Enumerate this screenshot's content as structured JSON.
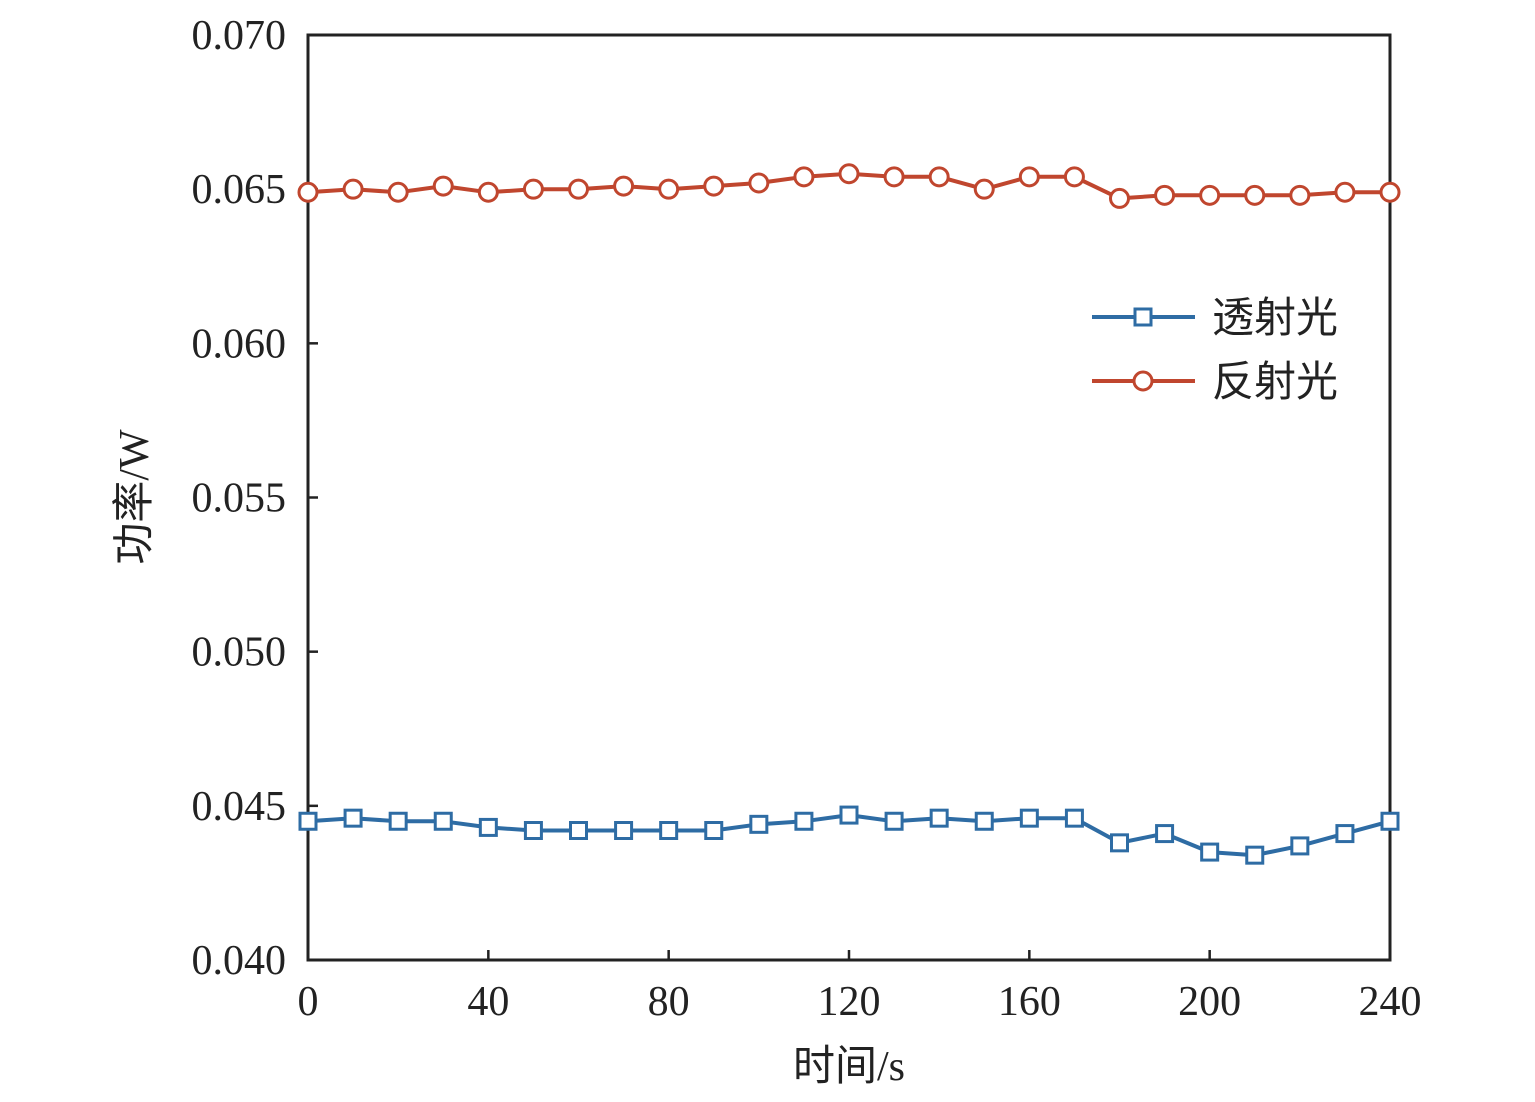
{
  "chart_data": {
    "type": "line",
    "title": "",
    "xlabel": "时间/s",
    "ylabel": "功率/W",
    "xlim": [
      0,
      240
    ],
    "ylim": [
      0.04,
      0.07
    ],
    "xticks": [
      "0",
      "40",
      "80",
      "120",
      "160",
      "200",
      "240"
    ],
    "yticks": [
      "0.040",
      "0.045",
      "0.050",
      "0.055",
      "0.060",
      "0.065",
      "0.070"
    ],
    "grid": false,
    "legend_position": "right",
    "x": [
      0,
      10,
      20,
      30,
      40,
      50,
      60,
      70,
      80,
      90,
      100,
      110,
      120,
      130,
      140,
      150,
      160,
      170,
      180,
      190,
      200,
      210,
      220,
      230,
      240
    ],
    "series": [
      {
        "name": "透射光",
        "color": "#2e6ca4",
        "marker": "square",
        "values": [
          0.0445,
          0.0446,
          0.0445,
          0.0445,
          0.0443,
          0.0442,
          0.0442,
          0.0442,
          0.0442,
          0.0442,
          0.0444,
          0.0445,
          0.0447,
          0.0445,
          0.0446,
          0.0445,
          0.0446,
          0.0446,
          0.0438,
          0.0441,
          0.0435,
          0.0434,
          0.0437,
          0.0441,
          0.0445
        ]
      },
      {
        "name": "反射光",
        "color": "#c0462e",
        "marker": "circle",
        "values": [
          0.0649,
          0.065,
          0.0649,
          0.0651,
          0.0649,
          0.065,
          0.065,
          0.0651,
          0.065,
          0.0651,
          0.0652,
          0.0654,
          0.0655,
          0.0654,
          0.0654,
          0.065,
          0.0654,
          0.0654,
          0.0647,
          0.0648,
          0.0648,
          0.0648,
          0.0648,
          0.0649,
          0.0649
        ]
      }
    ]
  }
}
